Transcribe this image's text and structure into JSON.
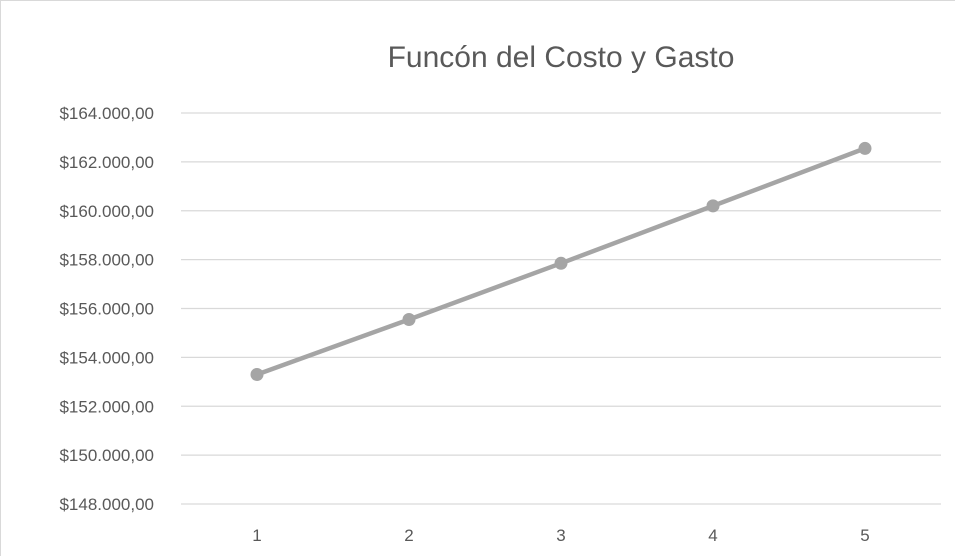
{
  "chart_data": {
    "type": "line",
    "title": "Funcón del Costo y Gasto",
    "xlabel": "",
    "ylabel": "",
    "categories": [
      "1",
      "2",
      "3",
      "4",
      "5"
    ],
    "series": [
      {
        "values": [
          153300,
          155550,
          157850,
          160200,
          162550
        ]
      }
    ],
    "ylim": [
      148000,
      164000
    ],
    "ytick_step": 2000,
    "ytick_labels": [
      "$148.000,00",
      "$150.000,00",
      "$152.000,00",
      "$154.000,00",
      "$156.000,00",
      "$158.000,00",
      "$160.000,00",
      "$162.000,00",
      "$164.000,00"
    ],
    "grid": true,
    "legend": "none",
    "colors": {
      "line": "#a5a5a5",
      "grid": "#d9d9d9",
      "text": "#595959"
    }
  }
}
